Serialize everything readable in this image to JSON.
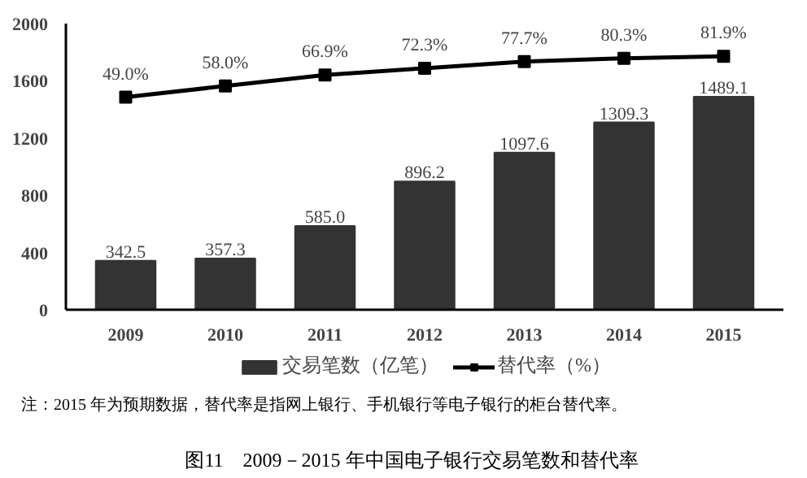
{
  "chart_data": {
    "type": "bar",
    "title": "图11　2009－2015 年中国电子银行交易笔数和替代率",
    "annotations": [
      "注：2015 年为预期数据，替代率是指网上银行、手机银行等电子银行的柜台替代率。"
    ],
    "categories": [
      "2009",
      "2010",
      "2011",
      "2012",
      "2013",
      "2014",
      "2015"
    ],
    "series": [
      {
        "name": "交易笔数（亿笔）",
        "color": "#333333",
        "values": [
          342.5,
          357.3,
          585.0,
          896.2,
          1097.6,
          1309.3,
          1489.1
        ],
        "value_labels": [
          "342.5",
          "357.3",
          "585.0",
          "896.2",
          "1097.6",
          "1309.3",
          "1489.1"
        ]
      },
      {
        "name": "替代率（%）",
        "type": "line",
        "axis": "y2",
        "color": "#000000",
        "marker": "square",
        "values": [
          49.0,
          58.0,
          66.9,
          72.3,
          77.7,
          80.3,
          81.9
        ],
        "value_labels": [
          "49.0%",
          "58.0%",
          "66.9%",
          "72.3%",
          "77.7%",
          "80.3%",
          "81.9%"
        ]
      }
    ],
    "ylim": [
      0,
      2000
    ],
    "yticks": [
      0,
      400,
      800,
      1200,
      1600,
      2000
    ],
    "grid": false,
    "legend": "bottom"
  }
}
